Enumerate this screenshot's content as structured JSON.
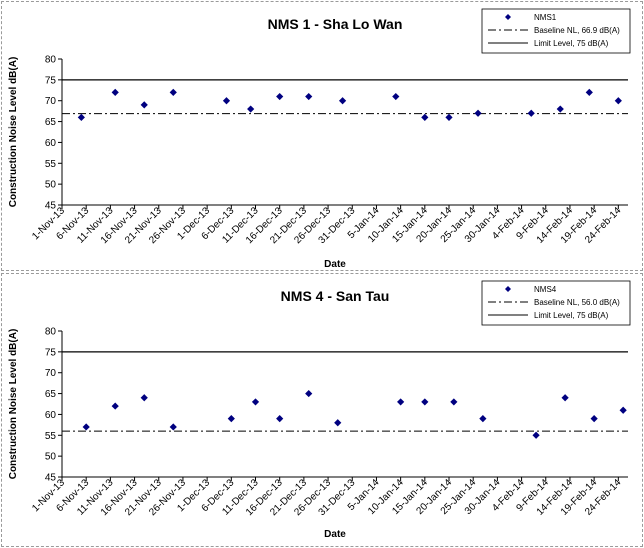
{
  "chart_data": [
    {
      "type": "scatter",
      "title": "NMS 1 - Sha Lo Wan",
      "xlabel": "Date",
      "ylabel": "Construction Noise Level  dB(A)",
      "ylim": [
        45,
        80
      ],
      "yticks": [
        45,
        50,
        55,
        60,
        65,
        70,
        75,
        80
      ],
      "xticks": [
        "1-Nov-13",
        "6-Nov-13",
        "11-Nov-13",
        "16-Nov-13",
        "21-Nov-13",
        "26-Nov-13",
        "1-Dec-13",
        "6-Dec-13",
        "11-Dec-13",
        "16-Dec-13",
        "21-Dec-13",
        "26-Dec-13",
        "31-Dec-13",
        "5-Jan-14",
        "10-Jan-14",
        "15-Jan-14",
        "20-Jan-14",
        "25-Jan-14",
        "30-Jan-14",
        "4-Feb-14",
        "9-Feb-14",
        "14-Feb-14",
        "19-Feb-14",
        "24-Feb-14"
      ],
      "grid": false,
      "legend_position": "top-right",
      "series": [
        {
          "name": "NMS1",
          "color": "#000080",
          "marker": "diamond",
          "x": [
            "5-Nov-13",
            "12-Nov-13",
            "18-Nov-13",
            "24-Nov-13",
            "5-Dec-13",
            "10-Dec-13",
            "16-Dec-13",
            "22-Dec-13",
            "29-Dec-13",
            "9-Jan-14",
            "15-Jan-14",
            "20-Jan-14",
            "26-Jan-14",
            "6-Feb-14",
            "12-Feb-14",
            "18-Feb-14",
            "24-Feb-14"
          ],
          "y": [
            66,
            72,
            69,
            72,
            70,
            68,
            71,
            71,
            70,
            71,
            66,
            66,
            67,
            67,
            68,
            72,
            70
          ]
        }
      ],
      "reference_lines": [
        {
          "name": "Baseline NL, 66.9 dB(A)",
          "value": 66.9,
          "style": "dash-dot"
        },
        {
          "name": "Limit Level, 75 dB(A)",
          "value": 75,
          "style": "solid"
        }
      ]
    },
    {
      "type": "scatter",
      "title": "NMS 4 - San Tau",
      "xlabel": "Date",
      "ylabel": "Construction Noise Level  dB(A)",
      "ylim": [
        45,
        80
      ],
      "yticks": [
        45,
        50,
        55,
        60,
        65,
        70,
        75,
        80
      ],
      "xticks": [
        "1-Nov-13",
        "6-Nov-13",
        "11-Nov-13",
        "16-Nov-13",
        "21-Nov-13",
        "26-Nov-13",
        "1-Dec-13",
        "6-Dec-13",
        "11-Dec-13",
        "16-Dec-13",
        "21-Dec-13",
        "26-Dec-13",
        "31-Dec-13",
        "5-Jan-14",
        "10-Jan-14",
        "15-Jan-14",
        "20-Jan-14",
        "25-Jan-14",
        "30-Jan-14",
        "4-Feb-14",
        "9-Feb-14",
        "14-Feb-14",
        "19-Feb-14",
        "24-Feb-14"
      ],
      "grid": false,
      "legend_position": "top-right",
      "series": [
        {
          "name": "NMS4",
          "color": "#000080",
          "marker": "diamond",
          "x": [
            "6-Nov-13",
            "12-Nov-13",
            "18-Nov-13",
            "24-Nov-13",
            "6-Dec-13",
            "11-Dec-13",
            "16-Dec-13",
            "22-Dec-13",
            "28-Dec-13",
            "10-Jan-14",
            "15-Jan-14",
            "21-Jan-14",
            "27-Jan-14",
            "7-Feb-14",
            "13-Feb-14",
            "19-Feb-14",
            "25-Feb-14"
          ],
          "y": [
            57,
            62,
            64,
            57,
            59,
            63,
            59,
            65,
            58,
            63,
            63,
            63,
            59,
            55,
            64,
            59,
            61
          ]
        }
      ],
      "reference_lines": [
        {
          "name": "Baseline NL, 56.0 dB(A)",
          "value": 56.0,
          "style": "dash-dot"
        },
        {
          "name": "Limit Level, 75 dB(A)",
          "value": 75,
          "style": "solid"
        }
      ]
    }
  ]
}
